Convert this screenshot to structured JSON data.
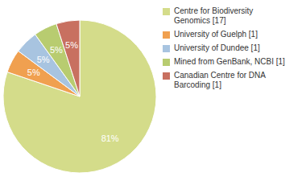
{
  "chart_data": {
    "type": "pie",
    "categories": [
      "Centre for Biodiversity\nGenomics [17]",
      "University of Guelph [1]",
      "University of Dundee [1]",
      "Mined from GenBank, NCBI [1]",
      "Canadian Centre for DNA\nBarcoding [1]"
    ],
    "values": [
      81,
      5,
      5,
      5,
      5
    ],
    "value_labels": [
      "81%",
      "5%",
      "5%",
      "5%",
      "5%"
    ],
    "colors": [
      "#d4dc8a",
      "#f0a050",
      "#a8c4e0",
      "#b8cc70",
      "#c87060"
    ],
    "data_labels": true,
    "legend": "right"
  }
}
